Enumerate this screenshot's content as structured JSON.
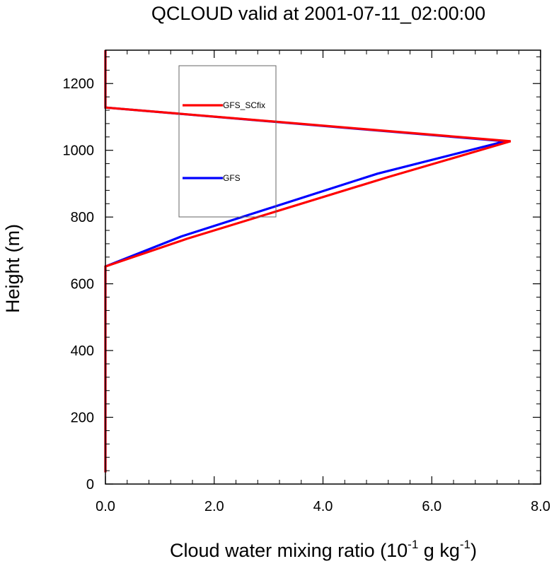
{
  "chart_data": {
    "type": "line",
    "title": "QCLOUD valid at 2001-07-11_02:00:00",
    "xlabel": {
      "main": "Cloud water mixing ratio (10",
      "sup1": "-1",
      "mid": " g kg",
      "sup2": "-1",
      "end": ")"
    },
    "ylabel": "Height (m)",
    "xlim": [
      0,
      8
    ],
    "ylim": [
      0,
      1300
    ],
    "x_ticks": [
      0,
      2,
      4,
      6,
      8
    ],
    "x_tick_labels": [
      "0.0",
      "2.0",
      "4.0",
      "6.0",
      "8.0"
    ],
    "y_ticks": [
      0,
      200,
      400,
      600,
      800,
      1000,
      1200
    ],
    "y_tick_labels": [
      "0",
      "200",
      "400",
      "600",
      "800",
      "1000",
      "1200"
    ],
    "grid": false,
    "legend_position": "upper-left-inside",
    "series": [
      {
        "name": "GFS_SCfix",
        "color": "#ff0000",
        "x": [
          0,
          0,
          0,
          1.5,
          5.2,
          7.45,
          0,
          0
        ],
        "y": [
          35,
          600,
          652,
          735,
          920,
          1027,
          1128,
          1300
        ]
      },
      {
        "name": "GFS",
        "color": "#0000ff",
        "x": [
          0,
          0,
          0,
          1.4,
          5.0,
          7.35,
          0,
          0
        ],
        "y": [
          35,
          600,
          652,
          742,
          930,
          1027,
          1128,
          1300
        ]
      }
    ]
  }
}
